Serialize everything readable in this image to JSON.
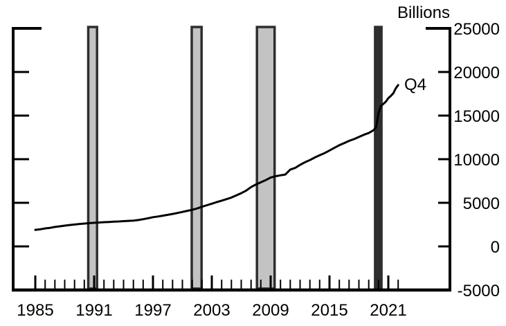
{
  "chart_data": {
    "type": "line",
    "title": "",
    "xlabel": "",
    "ylabel": "Billions",
    "annotation": "Q4",
    "grid": false,
    "legend_position": "none",
    "ylim": [
      -5000,
      25000
    ],
    "xlim": [
      1982.7,
      2027.3
    ],
    "y_axis": {
      "title": "Billions",
      "tick_values": [
        25000,
        20000,
        15000,
        10000,
        5000,
        0,
        -5000
      ],
      "tick_labels": [
        "25000",
        "20000",
        "15000",
        "10000",
        "5000",
        "0",
        "-5000"
      ]
    },
    "x_axis": {
      "major_tick_years": [
        1985,
        1991,
        1997,
        2003,
        2009,
        2015,
        2021
      ],
      "major_tick_labels": [
        "1985",
        "1991",
        "1997",
        "2003",
        "2009",
        "2015",
        "2021"
      ],
      "minor_tick_start": 1985,
      "minor_tick_end": 2022
    },
    "recession_bands": [
      {
        "from": 1990.4,
        "to": 1991.3,
        "style": "light"
      },
      {
        "from": 2000.95,
        "to": 2001.95,
        "style": "light"
      },
      {
        "from": 2007.6,
        "to": 2009.4,
        "style": "light"
      },
      {
        "from": 2019.65,
        "to": 2020.3,
        "style": "dark"
      }
    ],
    "colors": {
      "line": "#000000",
      "axis": "#000000",
      "band_fill": "#c3c3c3",
      "band_edge": "#2e2e2e"
    },
    "series": [
      {
        "points": [
          [
            1985.0,
            1900
          ],
          [
            1985.5,
            1960
          ],
          [
            1986.0,
            2060
          ],
          [
            1986.5,
            2130
          ],
          [
            1987.0,
            2230
          ],
          [
            1987.5,
            2300
          ],
          [
            1988.0,
            2380
          ],
          [
            1988.5,
            2450
          ],
          [
            1989.0,
            2510
          ],
          [
            1989.5,
            2570
          ],
          [
            1990.0,
            2620
          ],
          [
            1990.5,
            2670
          ],
          [
            1991.0,
            2710
          ],
          [
            1991.5,
            2740
          ],
          [
            1992.0,
            2780
          ],
          [
            1992.5,
            2800
          ],
          [
            1993.0,
            2830
          ],
          [
            1993.5,
            2860
          ],
          [
            1994.0,
            2900
          ],
          [
            1994.5,
            2930
          ],
          [
            1995.0,
            2960
          ],
          [
            1995.5,
            3020
          ],
          [
            1996.0,
            3120
          ],
          [
            1996.5,
            3230
          ],
          [
            1997.0,
            3350
          ],
          [
            1997.5,
            3430
          ],
          [
            1998.0,
            3520
          ],
          [
            1998.5,
            3620
          ],
          [
            1999.0,
            3720
          ],
          [
            1999.5,
            3830
          ],
          [
            2000.0,
            3950
          ],
          [
            2000.5,
            4080
          ],
          [
            2001.0,
            4200
          ],
          [
            2001.5,
            4350
          ],
          [
            2002.0,
            4550
          ],
          [
            2002.5,
            4720
          ],
          [
            2003.0,
            4900
          ],
          [
            2003.5,
            5080
          ],
          [
            2004.0,
            5250
          ],
          [
            2004.5,
            5420
          ],
          [
            2005.0,
            5600
          ],
          [
            2005.5,
            5850
          ],
          [
            2006.0,
            6100
          ],
          [
            2006.5,
            6400
          ],
          [
            2007.0,
            6800
          ],
          [
            2007.5,
            7100
          ],
          [
            2008.0,
            7350
          ],
          [
            2008.5,
            7600
          ],
          [
            2009.0,
            7900
          ],
          [
            2009.5,
            8050
          ],
          [
            2010.0,
            8150
          ],
          [
            2010.5,
            8250
          ],
          [
            2011.0,
            8800
          ],
          [
            2011.5,
            9000
          ],
          [
            2012.0,
            9350
          ],
          [
            2012.5,
            9650
          ],
          [
            2013.0,
            9900
          ],
          [
            2013.5,
            10200
          ],
          [
            2014.0,
            10450
          ],
          [
            2014.5,
            10700
          ],
          [
            2015.0,
            11000
          ],
          [
            2015.5,
            11300
          ],
          [
            2016.0,
            11600
          ],
          [
            2016.5,
            11850
          ],
          [
            2017.0,
            12100
          ],
          [
            2017.5,
            12300
          ],
          [
            2018.0,
            12550
          ],
          [
            2018.5,
            12800
          ],
          [
            2019.0,
            13000
          ],
          [
            2019.5,
            13330
          ],
          [
            2019.75,
            13650
          ],
          [
            2020.0,
            15300
          ],
          [
            2020.25,
            16100
          ],
          [
            2020.5,
            16350
          ],
          [
            2020.75,
            16600
          ],
          [
            2021.0,
            17000
          ],
          [
            2021.25,
            17250
          ],
          [
            2021.5,
            17550
          ],
          [
            2021.75,
            18100
          ],
          [
            2022.0,
            18500
          ]
        ]
      }
    ]
  }
}
